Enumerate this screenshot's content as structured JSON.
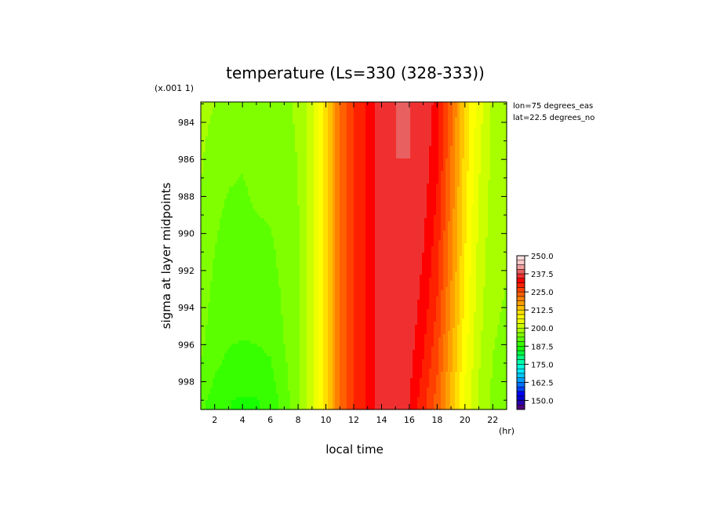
{
  "chart_data": {
    "type": "heatmap",
    "title": "temperature (Ls=330 (328-333))",
    "xlabel": "local time",
    "xunit": "(hr)",
    "ylabel": "sigma at layer midpoints",
    "yscale_note": "(x.001 1)",
    "info": [
      "lon=75 degrees_eas",
      "lat=22.5 degrees_no"
    ],
    "xlim": [
      1,
      23
    ],
    "ylim": [
      999.5,
      982.9
    ],
    "x_ticks": [
      2,
      4,
      6,
      8,
      10,
      12,
      14,
      16,
      18,
      20,
      22
    ],
    "y_ticks": [
      984,
      986,
      988,
      990,
      992,
      994,
      996,
      998
    ],
    "x": [
      1,
      2,
      3,
      4,
      5,
      6,
      7,
      8,
      9,
      10,
      11,
      12,
      13,
      14,
      15,
      16,
      17,
      18,
      19,
      20,
      21,
      22,
      23
    ],
    "y": [
      983,
      984,
      985,
      986,
      987,
      988,
      989,
      990,
      991,
      992,
      993,
      994,
      995,
      996,
      997,
      998,
      999
    ],
    "z": [
      [
        197.5,
        196.9,
        195.5,
        194.8,
        195.6,
        195.7,
        196.3,
        197.2,
        202.0,
        211.0,
        222.0,
        228.0,
        232.0,
        237.2,
        237.5,
        237.5,
        237.2,
        233.0,
        223.0,
        212.0,
        204.5,
        199.5,
        198.5
      ],
      [
        197.5,
        196.5,
        195.2,
        194.6,
        195.4,
        195.6,
        196.2,
        197.2,
        202.0,
        211.0,
        222.0,
        228.0,
        232.0,
        237.2,
        237.5,
        237.5,
        237.0,
        232.7,
        222.6,
        211.7,
        204.2,
        199.4,
        198.4
      ],
      [
        197.4,
        196.0,
        194.8,
        194.3,
        195.2,
        195.3,
        196.0,
        197.1,
        202.0,
        211.0,
        222.0,
        228.0,
        232.0,
        237.2,
        237.5,
        237.5,
        236.7,
        232.3,
        222.2,
        211.4,
        203.9,
        199.2,
        198.3
      ],
      [
        197.2,
        195.5,
        194.4,
        194.0,
        194.9,
        195.0,
        195.8,
        197.0,
        202.0,
        211.0,
        222.0,
        228.0,
        232.0,
        237.2,
        237.5,
        237.5,
        236.3,
        231.9,
        221.8,
        211.1,
        203.6,
        199.0,
        198.2
      ],
      [
        197.0,
        195.0,
        194.0,
        193.7,
        194.6,
        194.7,
        195.6,
        196.9,
        202.0,
        211.0,
        222.0,
        228.0,
        232.0,
        237.2,
        237.5,
        237.4,
        236.0,
        231.5,
        221.4,
        210.8,
        203.3,
        198.8,
        198.0
      ],
      [
        196.8,
        194.6,
        193.6,
        193.3,
        194.2,
        194.4,
        195.4,
        196.8,
        202.0,
        211.0,
        222.0,
        228.0,
        232.0,
        237.2,
        237.5,
        237.3,
        235.6,
        231.0,
        221.0,
        210.5,
        203.0,
        198.6,
        197.8
      ],
      [
        196.5,
        194.3,
        193.2,
        193.0,
        193.7,
        194.0,
        195.2,
        196.7,
        202.0,
        211.0,
        222.0,
        228.0,
        232.0,
        237.2,
        237.5,
        237.2,
        235.2,
        230.5,
        220.6,
        210.2,
        202.7,
        198.4,
        197.6
      ],
      [
        196.2,
        194.0,
        192.9,
        192.7,
        193.2,
        193.6,
        195.0,
        196.6,
        202.0,
        211.0,
        222.0,
        228.0,
        232.0,
        237.2,
        237.5,
        237.1,
        234.8,
        230.0,
        220.2,
        209.9,
        202.4,
        198.2,
        197.4
      ],
      [
        195.9,
        193.7,
        192.6,
        192.4,
        192.8,
        193.2,
        194.8,
        196.5,
        202.0,
        211.0,
        222.0,
        228.0,
        232.0,
        237.2,
        237.5,
        237.0,
        234.4,
        229.5,
        219.8,
        209.5,
        202.1,
        198.0,
        197.2
      ],
      [
        195.6,
        193.4,
        192.3,
        192.1,
        192.4,
        192.8,
        194.6,
        196.4,
        202.0,
        211.0,
        222.0,
        228.0,
        232.0,
        237.2,
        237.5,
        236.8,
        234.0,
        229.0,
        219.3,
        209.1,
        201.8,
        197.8,
        197.0
      ],
      [
        195.3,
        193.1,
        192.0,
        191.8,
        192.0,
        192.4,
        194.4,
        196.3,
        202.0,
        211.0,
        222.0,
        228.0,
        232.0,
        237.2,
        237.5,
        236.6,
        233.5,
        228.4,
        218.8,
        208.7,
        201.5,
        197.6,
        196.8
      ],
      [
        195.0,
        192.8,
        191.6,
        191.4,
        191.6,
        192.0,
        194.2,
        196.2,
        202.0,
        211.0,
        222.0,
        228.0,
        232.0,
        237.2,
        237.5,
        236.4,
        233.0,
        227.8,
        218.2,
        208.3,
        201.2,
        197.4,
        196.6
      ],
      [
        194.7,
        192.4,
        191.2,
        191.0,
        191.1,
        191.6,
        194.0,
        196.1,
        202.0,
        211.0,
        222.0,
        228.0,
        232.0,
        237.2,
        237.5,
        236.1,
        232.4,
        227.1,
        217.6,
        207.9,
        200.9,
        197.2,
        196.4
      ],
      [
        194.3,
        191.9,
        190.7,
        190.5,
        190.6,
        191.1,
        193.7,
        196.0,
        202.0,
        211.0,
        222.0,
        228.0,
        232.0,
        237.2,
        237.5,
        235.8,
        231.8,
        226.4,
        216.9,
        207.4,
        200.6,
        197.0,
        196.2
      ],
      [
        193.8,
        191.2,
        190.0,
        189.8,
        189.9,
        190.4,
        193.3,
        195.9,
        202.0,
        211.0,
        222.0,
        228.0,
        232.0,
        237.2,
        237.5,
        235.4,
        231.1,
        225.6,
        216.2,
        206.9,
        200.3,
        196.8,
        196.0
      ],
      [
        192.9,
        190.3,
        189.0,
        188.6,
        188.7,
        189.4,
        192.9,
        195.8,
        202.0,
        211.0,
        222.0,
        228.0,
        232.0,
        237.2,
        237.5,
        235.0,
        230.3,
        224.7,
        215.4,
        206.3,
        199.9,
        196.5,
        195.7
      ],
      [
        191.8,
        189.0,
        187.6,
        187.2,
        187.3,
        188.2,
        192.4,
        195.7,
        202.0,
        211.0,
        222.0,
        228.0,
        232.0,
        237.2,
        237.5,
        234.5,
        229.4,
        223.7,
        214.5,
        205.7,
        199.5,
        196.2,
        195.4
      ]
    ],
    "colorbar_levels": [
      150.0,
      162.5,
      175.0,
      187.5,
      200.0,
      212.5,
      225.0,
      237.5,
      250.0
    ],
    "colorbar_range": [
      143.75,
      250.0
    ],
    "colorbar_step": 3.125,
    "colors": [
      "#52007a",
      "#2a00b0",
      "#0000cc",
      "#0000ff",
      "#0040ff",
      "#0070ff",
      "#00a0ff",
      "#00c8ff",
      "#00eaff",
      "#00ffdd",
      "#00ffaa",
      "#00ff80",
      "#00ff40",
      "#18ff00",
      "#38ff00",
      "#5cff00",
      "#80ff00",
      "#a8ff00",
      "#ccff00",
      "#eeff00",
      "#ffff00",
      "#ffe000",
      "#ffc000",
      "#ffa000",
      "#ff8000",
      "#ff6000",
      "#ff4000",
      "#ff2000",
      "#ff0000",
      "#f03030",
      "#e86060",
      "#f0a0a0",
      "#ffc8c8",
      "#ffe0e0"
    ]
  }
}
